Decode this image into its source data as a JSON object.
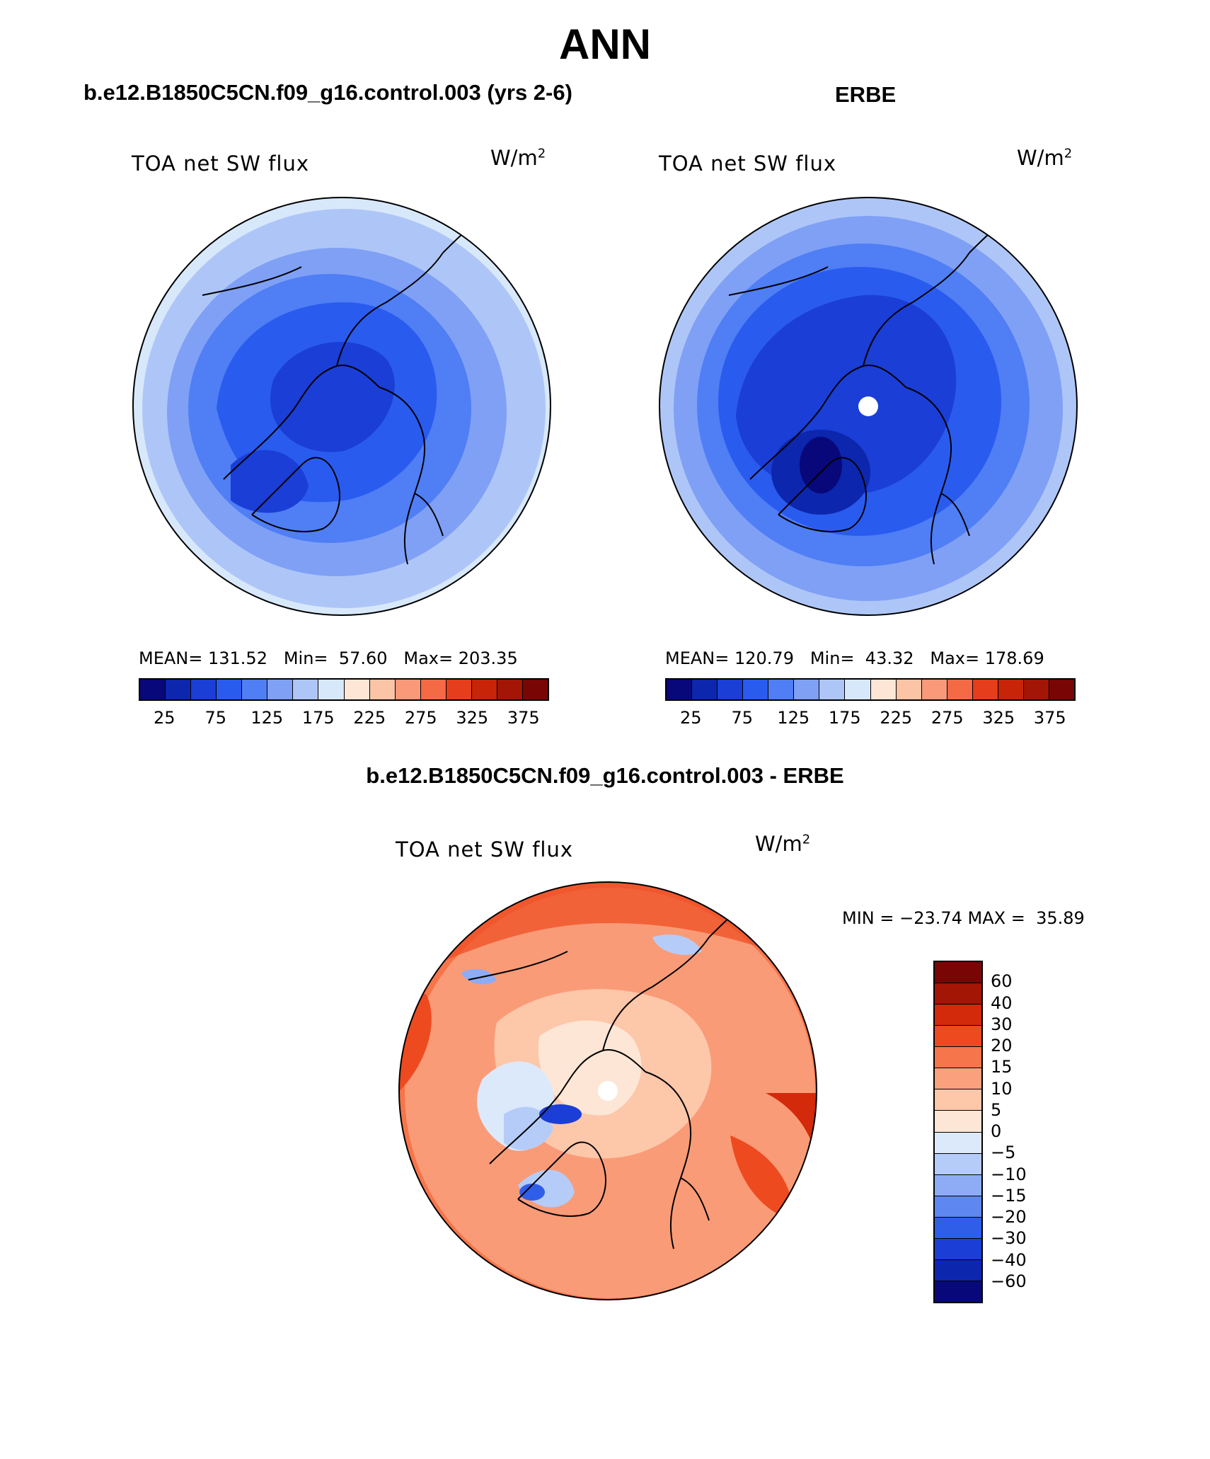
{
  "page": {
    "title": "ANN",
    "left_case": "b.e12.B1850C5CN.f09_g16.control.003 (yrs 2-6)",
    "right_case": "ERBE",
    "diff_case": "b.e12.B1850C5CN.f09_g16.control.003 - ERBE"
  },
  "panels": {
    "model": {
      "variable": "TOA net SW flux",
      "units_base": "W/m",
      "units_exp": "2",
      "stats": "MEAN= 131.52   Min=  57.60   Max= 203.35"
    },
    "obs": {
      "variable": "TOA net SW flux",
      "units_base": "W/m",
      "units_exp": "2",
      "stats": "MEAN= 120.79   Min=  43.32   Max= 178.69"
    },
    "diff": {
      "variable": "TOA net SW flux",
      "units_base": "W/m",
      "units_exp": "2",
      "stats": "MIN = −23.74 MAX =  35.89"
    }
  },
  "colorbar_abs": {
    "colors": [
      "#08087a",
      "#0c26ad",
      "#1a3ed6",
      "#2a5bef",
      "#4f7ef5",
      "#7fa0f5",
      "#aec6f7",
      "#d8e8fb",
      "#fde6d6",
      "#fbc4a6",
      "#f9997a",
      "#f36a45",
      "#e63d1c",
      "#c72408",
      "#a31505",
      "#7a0505"
    ],
    "tick_labels": [
      "25",
      "75",
      "125",
      "175",
      "225",
      "275",
      "325",
      "375"
    ]
  },
  "colorbar_diff": {
    "colors_top_to_bottom": [
      "#7a0505",
      "#a31505",
      "#d22a0a",
      "#ee4a20",
      "#f7754a",
      "#faa07c",
      "#fdc7a9",
      "#fde6d6",
      "#dce9fb",
      "#b6ccf8",
      "#8eacf6",
      "#5f87f2",
      "#2f5ee9",
      "#1a3ed6",
      "#0c26ad",
      "#08087a"
    ],
    "tick_labels_top_to_bottom": [
      "60",
      "40",
      "30",
      "20",
      "15",
      "10",
      "5",
      "0",
      "−5",
      "−10",
      "−15",
      "−20",
      "−30",
      "−40",
      "−60"
    ]
  },
  "chart_data": {
    "type": "map",
    "projection": "north polar stereographic",
    "maps": [
      {
        "name": "b.e12.B1850C5CN.f09_g16.control.003 (yrs 2-6)",
        "mean": 131.52,
        "min": 57.6,
        "max": 203.35
      },
      {
        "name": "ERBE",
        "mean": 120.79,
        "min": 43.32,
        "max": 178.69
      },
      {
        "name": "b.e12.B1850C5CN.f09_g16.control.003 - ERBE",
        "min": -23.74,
        "max": 35.89
      }
    ]
  }
}
